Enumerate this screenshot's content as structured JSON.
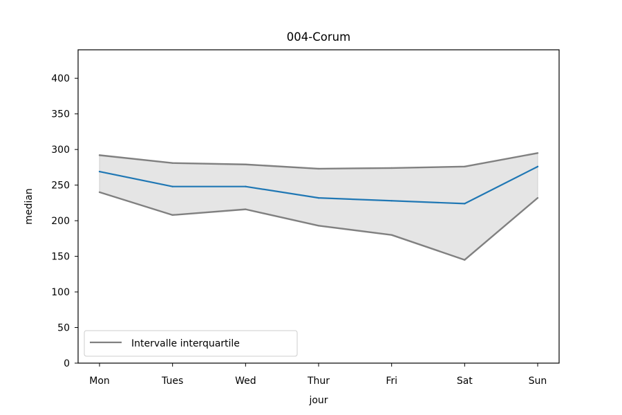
{
  "chart_data": {
    "type": "line",
    "title": "004-Corum",
    "xlabel": "jour",
    "ylabel": "median",
    "categories": [
      "Mon",
      "Tues",
      "Wed",
      "Thur",
      "Fri",
      "Sat",
      "Sun"
    ],
    "ylim": [
      0,
      440
    ],
    "yticks": [
      0,
      50,
      100,
      150,
      200,
      250,
      300,
      350,
      400
    ],
    "series": [
      {
        "key": "median",
        "values": [
          269,
          248,
          248,
          232,
          228,
          224,
          276
        ],
        "color": "#1f77b4"
      },
      {
        "key": "q3",
        "values": [
          292,
          281,
          279,
          273,
          274,
          276,
          295
        ],
        "color": "#808080"
      },
      {
        "key": "q1",
        "values": [
          240,
          208,
          216,
          193,
          180,
          145,
          232
        ],
        "color": "#808080"
      }
    ],
    "band": {
      "upper": "q3",
      "lower": "q1",
      "fill": "#e5e5e5"
    },
    "legend": {
      "position": "lower-left",
      "entries": [
        {
          "label": "Intervalle interquartile",
          "color": "#808080"
        }
      ]
    },
    "grid": false
  }
}
